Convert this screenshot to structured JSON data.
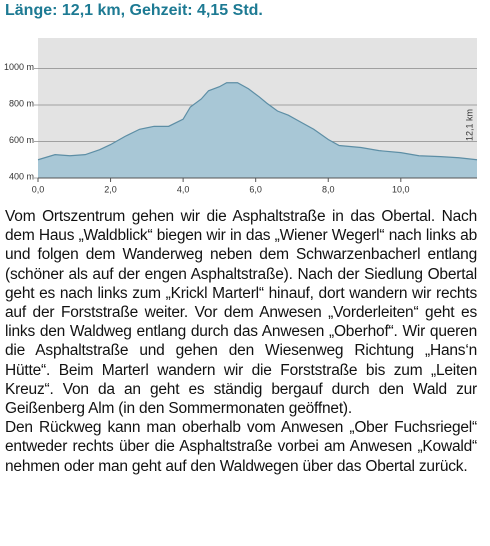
{
  "header": {
    "title": "Länge: 12,1 km, Gehzeit: 4,15 Std."
  },
  "chart_data": {
    "type": "area",
    "x": [
      0,
      0.47,
      0.88,
      1.3,
      1.7,
      2.0,
      2.4,
      2.8,
      3.2,
      3.6,
      4.0,
      4.2,
      4.5,
      4.7,
      5.0,
      5.2,
      5.5,
      5.8,
      6.1,
      6.3,
      6.6,
      6.9,
      7.2,
      7.6,
      8.0,
      8.3,
      8.9,
      9.4,
      10.0,
      10.5,
      11.1,
      11.6,
      12.1
    ],
    "series": [
      {
        "color": "#a8c7d6",
        "values": [
          500,
          528,
          522,
          528,
          555,
          583,
          628,
          667,
          683,
          683,
          722,
          789,
          833,
          878,
          900,
          922,
          922,
          889,
          844,
          811,
          767,
          744,
          711,
          667,
          611,
          578,
          567,
          550,
          539,
          522,
          517,
          511,
          500
        ]
      }
    ],
    "xlim": [
      0,
      12.1
    ],
    "xticks": [
      {
        "value": 0,
        "label": "0,0"
      },
      {
        "value": 2,
        "label": "2,0"
      },
      {
        "value": 4,
        "label": "4,0"
      },
      {
        "value": 6,
        "label": "6,0"
      },
      {
        "value": 8,
        "label": "8,0"
      },
      {
        "value": 10,
        "label": "10,0"
      }
    ],
    "ylim": [
      400,
      1167
    ],
    "yticks": [
      {
        "value": 400,
        "label": "400 m"
      },
      {
        "value": 600,
        "label": "600 m"
      },
      {
        "value": 800,
        "label": "800 m"
      },
      {
        "value": 1000,
        "label": "1000 m"
      }
    ],
    "grid": true,
    "annotation": "12,1 km"
  },
  "paragraphs": [
    "Vom Ortszentrum gehen wir die Asphaltstraße in das Obertal. Nach dem Haus „Waldblick“ biegen wir in das „Wiener Wegerl“ nach links ab und folgen dem Wanderweg neben dem Schwarzenbacherl entlang (schöner als auf der engen Asphaltstraße). Nach der Siedlung Obertal geht es nach links zum „Krickl Marterl“ hinauf, dort wandern wir rechts auf der Forststraße weiter. Vor dem Anwesen „Vorderleiten“ geht es links den Waldweg entlang durch das Anwesen „Oberhof“. Wir queren die Asphaltstraße und gehen den Wiesenweg Richtung „Hans‘n Hütte“. Beim Marterl wandern wir die Forststraße bis zum „Leiten Kreuz“. Von da an geht es ständig bergauf durch den Wald zur Geißenberg Alm (in den Sommermonaten geöffnet).",
    "Den Rückweg kann man oberhalb vom Anwesen „Ober Fuchsriegel“ entweder rechts über die Asphaltstraße vorbei am Anwesen „Kowald“ nehmen oder man geht auf den Waldwegen über das Obertal zurück."
  ]
}
